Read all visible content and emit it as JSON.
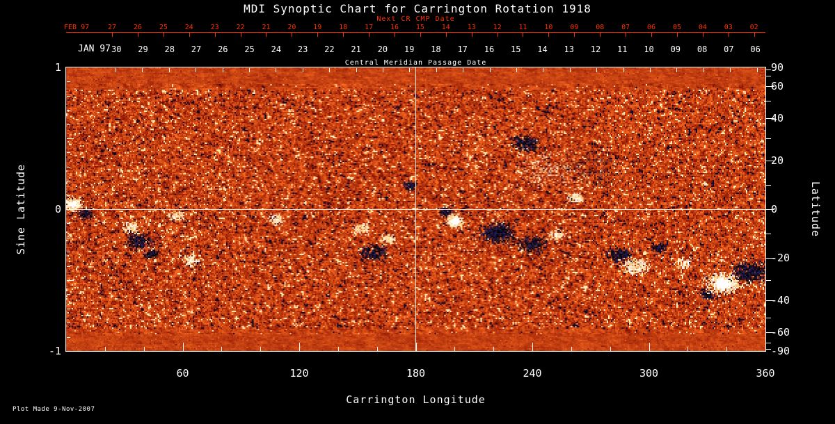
{
  "title": "MDI Synoptic Chart for Carrington Rotation 1918",
  "colors": {
    "axis_red": "#ff3000",
    "axis_white": "#ffffff",
    "background": "#000000",
    "magnetogram_base": "#d84510",
    "positive_field": "#ffffff",
    "negative_field": "#10102a"
  },
  "axes": {
    "top_red": {
      "label": "Next CR CMP Date",
      "month_label": "FEB 97",
      "tick_labels": [
        "27",
        "26",
        "25",
        "24",
        "23",
        "22",
        "21",
        "20",
        "19",
        "18",
        "17",
        "16",
        "15",
        "14",
        "13",
        "12",
        "11",
        "10",
        "09",
        "08",
        "07",
        "06",
        "05",
        "04",
        "03",
        "02"
      ]
    },
    "top_white": {
      "label": "Central Meridian Passage Date",
      "month_label": "JAN 97",
      "tick_labels": [
        "30",
        "29",
        "28",
        "27",
        "26",
        "25",
        "24",
        "23",
        "22",
        "21",
        "20",
        "19",
        "18",
        "17",
        "16",
        "15",
        "14",
        "13",
        "12",
        "11",
        "10",
        "09",
        "08",
        "07",
        "06"
      ]
    },
    "bottom": {
      "label": "Carrington Longitude"
    },
    "left": {
      "label": "Sine Latitude"
    },
    "right": {
      "label": "Latitude"
    }
  },
  "footer": {
    "plot_made": "Plot Made  9-Nov-2007"
  },
  "chart_data": {
    "type": "heatmap",
    "title": "MDI Synoptic Chart for Carrington Rotation 1918",
    "description": "Solar magnetogram synoptic map for Carrington rotation 1918: fine orange-red speckle background with white (positive polarity) and dark navy/black (negative polarity) magnetic active regions; white crosshair at longitude 180 and sine latitude 0.",
    "xlabel": "Carrington Longitude",
    "xlim": [
      0,
      360
    ],
    "x_ticks": [
      60,
      120,
      180,
      240,
      300,
      360
    ],
    "ylabel_left": "Sine Latitude",
    "ylim_sine": [
      -1,
      1
    ],
    "left_ticks": [
      1,
      0,
      -1
    ],
    "ylabel_right": "Latitude",
    "right_ticks": [
      90,
      60,
      40,
      20,
      0,
      -20,
      -40,
      -60,
      -90
    ],
    "grid": false,
    "crosshair": {
      "longitude": 180,
      "sine_latitude": 0
    },
    "top_axis_dates": {
      "next_cr_month": "FEB 97",
      "next_cr_days": [
        27,
        26,
        25,
        24,
        23,
        22,
        21,
        20,
        19,
        18,
        17,
        16,
        15,
        14,
        13,
        12,
        11,
        10,
        9,
        8,
        7,
        6,
        5,
        4,
        3,
        2
      ],
      "cmp_month": "JAN 97",
      "cmp_days": [
        30,
        29,
        28,
        27,
        26,
        25,
        24,
        23,
        22,
        21,
        20,
        19,
        18,
        17,
        16,
        15,
        14,
        13,
        12,
        11,
        10,
        9,
        8,
        7,
        6
      ]
    },
    "active_regions": [
      {
        "lon": 3,
        "sine_latitude": 0.04,
        "polarity": "positive",
        "size": "compact"
      },
      {
        "lon": 10,
        "sine_latitude": -0.03,
        "polarity": "negative",
        "size": "small"
      },
      {
        "lon": 33,
        "sine_latitude": -0.12,
        "polarity": "positive",
        "size": "small"
      },
      {
        "lon": 37,
        "sine_latitude": -0.22,
        "polarity": "negative",
        "size": "medium"
      },
      {
        "lon": 44,
        "sine_latitude": -0.31,
        "polarity": "negative",
        "size": "small"
      },
      {
        "lon": 56,
        "sine_latitude": -0.04,
        "polarity": "positive",
        "size": "small"
      },
      {
        "lon": 64,
        "sine_latitude": -0.36,
        "polarity": "positive",
        "size": "small"
      },
      {
        "lon": 108,
        "sine_latitude": -0.07,
        "polarity": "positive",
        "size": "small"
      },
      {
        "lon": 152,
        "sine_latitude": -0.13,
        "polarity": "positive",
        "size": "small"
      },
      {
        "lon": 158,
        "sine_latitude": -0.3,
        "polarity": "negative",
        "size": "medium"
      },
      {
        "lon": 166,
        "sine_latitude": -0.21,
        "polarity": "positive",
        "size": "small"
      },
      {
        "lon": 177,
        "sine_latitude": 0.17,
        "polarity": "negative",
        "size": "small"
      },
      {
        "lon": 196,
        "sine_latitude": -0.02,
        "polarity": "negative",
        "size": "small"
      },
      {
        "lon": 200,
        "sine_latitude": -0.08,
        "polarity": "positive",
        "size": "compact"
      },
      {
        "lon": 222,
        "sine_latitude": -0.16,
        "polarity": "negative",
        "size": "large"
      },
      {
        "lon": 240,
        "sine_latitude": -0.24,
        "polarity": "negative",
        "size": "medium"
      },
      {
        "lon": 252,
        "sine_latitude": -0.18,
        "polarity": "positive",
        "size": "small"
      },
      {
        "lon": 247,
        "sine_latitude": 0.28,
        "polarity": "positive",
        "size": "trail"
      },
      {
        "lon": 236,
        "sine_latitude": 0.47,
        "polarity": "negative",
        "size": "medium"
      },
      {
        "lon": 262,
        "sine_latitude": 0.08,
        "polarity": "positive",
        "size": "small"
      },
      {
        "lon": 270,
        "sine_latitude": 0.3,
        "polarity": "negative",
        "size": "trail"
      },
      {
        "lon": 285,
        "sine_latitude": -0.32,
        "polarity": "negative",
        "size": "medium"
      },
      {
        "lon": 293,
        "sine_latitude": -0.4,
        "polarity": "positive",
        "size": "medium"
      },
      {
        "lon": 305,
        "sine_latitude": -0.27,
        "polarity": "negative",
        "size": "small"
      },
      {
        "lon": 318,
        "sine_latitude": -0.38,
        "polarity": "positive",
        "size": "small"
      },
      {
        "lon": 330,
        "sine_latitude": -0.6,
        "polarity": "negative",
        "size": "small"
      },
      {
        "lon": 338,
        "sine_latitude": -0.52,
        "polarity": "positive",
        "size": "large"
      },
      {
        "lon": 352,
        "sine_latitude": -0.44,
        "polarity": "negative",
        "size": "large"
      }
    ]
  }
}
